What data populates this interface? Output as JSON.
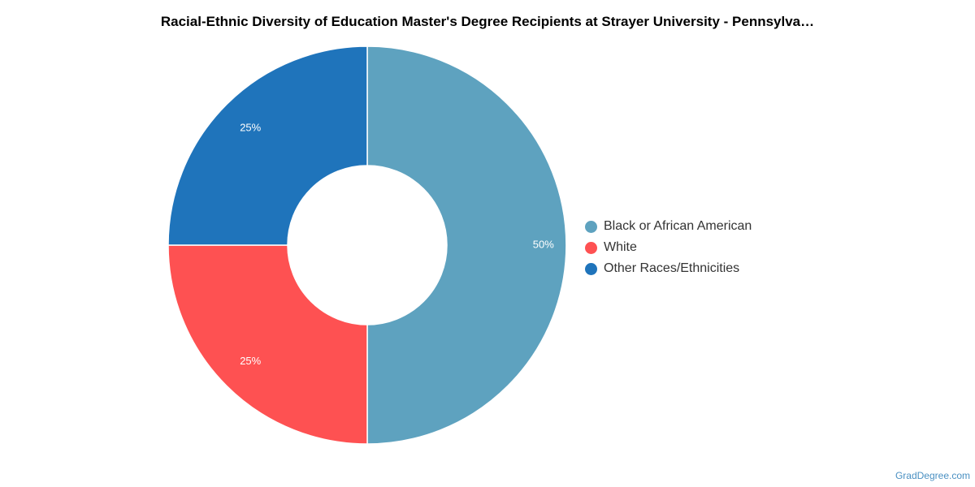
{
  "chart_data": {
    "type": "pie",
    "title": "Racial-Ethnic Diversity of Education Master's Degree Recipients at Strayer University - Pennsylva…",
    "donut": true,
    "legend_position": "right",
    "slices": [
      {
        "name": "Black or African American",
        "value": 50,
        "label": "50%",
        "color": "#5ea2bf"
      },
      {
        "name": "White",
        "value": 25,
        "label": "25%",
        "color": "#fe5152"
      },
      {
        "name": "Other Races/Ethnicities",
        "value": 25,
        "label": "25%",
        "color": "#1f74bb"
      }
    ]
  },
  "footer": {
    "watermark": "GradDegree.com"
  }
}
